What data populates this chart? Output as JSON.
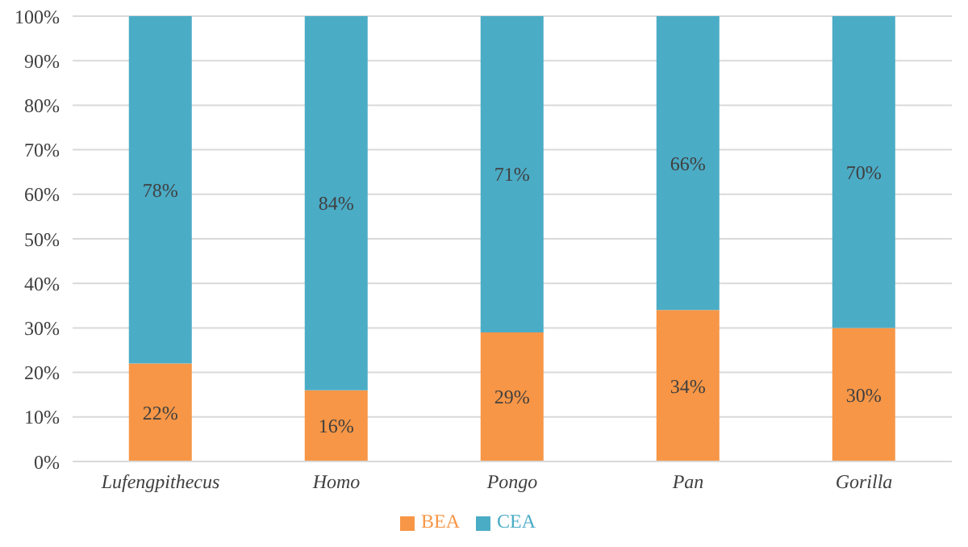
{
  "chart_data": {
    "type": "bar",
    "stacked": true,
    "categories": [
      "Lufengpithecus",
      "Homo",
      "Pongo",
      "Pan",
      "Gorilla"
    ],
    "series": [
      {
        "name": "BEA",
        "color": "#f79646",
        "values": [
          22,
          16,
          29,
          34,
          30
        ],
        "value_labels": [
          "22%",
          "16%",
          "29%",
          "34%",
          "30%"
        ]
      },
      {
        "name": "CEA",
        "color": "#4bacc6",
        "values": [
          78,
          84,
          71,
          66,
          70
        ],
        "value_labels": [
          "78%",
          "84%",
          "71%",
          "66%",
          "70%"
        ]
      }
    ],
    "ylim": [
      0,
      100
    ],
    "yticks": [
      {
        "value": 0,
        "label": "0%"
      },
      {
        "value": 10,
        "label": "10%"
      },
      {
        "value": 20,
        "label": "20%"
      },
      {
        "value": 30,
        "label": "30%"
      },
      {
        "value": 40,
        "label": "40%"
      },
      {
        "value": 50,
        "label": "50%"
      },
      {
        "value": 60,
        "label": "60%"
      },
      {
        "value": 70,
        "label": "70%"
      },
      {
        "value": 80,
        "label": "80%"
      },
      {
        "value": 90,
        "label": "90%"
      },
      {
        "value": 100,
        "label": "100%"
      }
    ],
    "grid": "y",
    "legend": "bottom"
  }
}
